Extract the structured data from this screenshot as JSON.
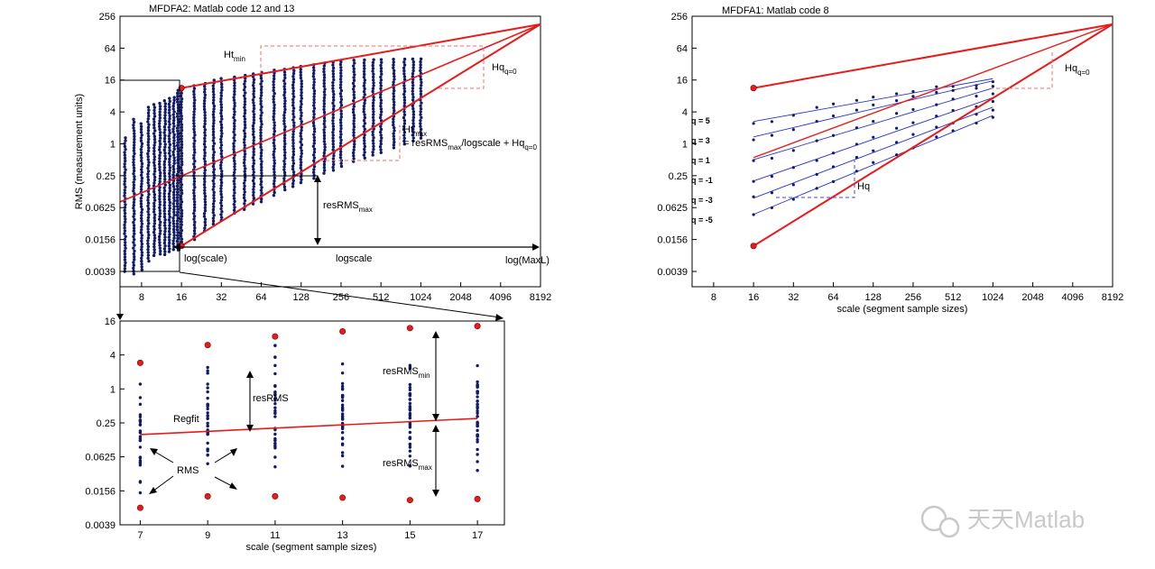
{
  "chart_data": [
    {
      "type": "scatter",
      "title": "MFDFA2: Matlab code 12 and 13",
      "ylabel": "RMS (measurement units)",
      "xlabel": "",
      "xscale": "log2",
      "yscale": "log2",
      "xlim": [
        5.5,
        8192
      ],
      "ylim": [
        0.0039,
        256
      ],
      "x_ticks": [
        "8",
        "16",
        "32",
        "64",
        "128",
        "256",
        "512",
        "1024",
        "2048",
        "4096",
        "8192"
      ],
      "y_ticks": [
        "0.0039",
        "0.0156",
        "0.0625",
        "0.25",
        "1",
        "4",
        "16",
        "64",
        "256"
      ],
      "series": [
        {
          "points": [
            [
              6,
              0.0039,
              1.3
            ],
            [
              7,
              0.0035,
              2.9
            ],
            [
              8,
              0.0042,
              2.4
            ],
            [
              9,
              0.0061,
              4.9
            ],
            [
              10,
              0.0078,
              5.5
            ],
            [
              11,
              0.0083,
              5.8
            ],
            [
              12,
              0.0081,
              6.5
            ],
            [
              13,
              0.0092,
              7.2
            ],
            [
              14,
              0.0101,
              7.5
            ],
            [
              15,
              0.0099,
              10.2
            ],
            [
              16,
              0.0124,
              11.6
            ],
            [
              20,
              0.0156,
              12.5
            ],
            [
              24,
              0.0227,
              13.8
            ],
            [
              28,
              0.0306,
              15.9
            ],
            [
              32,
              0.0359,
              17.1
            ],
            [
              40,
              0.0493,
              18.2
            ],
            [
              48,
              0.0577,
              19.6
            ],
            [
              56,
              0.0733,
              20.9
            ],
            [
              64,
              0.0805,
              22.2
            ],
            [
              80,
              0.1063,
              24.6
            ],
            [
              96,
              0.1351,
              25.5
            ],
            [
              112,
              0.1562,
              27.3
            ],
            [
              128,
              0.1851,
              28.9
            ],
            [
              160,
              0.2234,
              31.1
            ],
            [
              192,
              0.2781,
              33.4
            ],
            [
              224,
              0.3162,
              34.7
            ],
            [
              256,
              0.3752,
              35.6
            ],
            [
              320,
              0.4633,
              37.9
            ],
            [
              384,
              0.5394,
              38.3
            ],
            [
              448,
              0.6128,
              38.7
            ],
            [
              512,
              0.6822,
              38.9
            ],
            [
              640,
              0.8409,
              39.4
            ],
            [
              768,
              0.9892,
              39.6
            ],
            [
              896,
              1.1337,
              39.8
            ],
            [
              1024,
              1.2786,
              40.0
            ]
          ]
        }
      ],
      "lines": [
        {
          "name": "upper",
          "from": [
            16,
            11.3
          ],
          "to": [
            8192,
            181
          ]
        },
        {
          "name": "regfit",
          "from": [
            5.5,
            0.08
          ],
          "to": [
            8192,
            181
          ]
        },
        {
          "name": "lower",
          "from": [
            16,
            0.0118
          ],
          "to": [
            8192,
            181
          ]
        }
      ],
      "endpoints_red": [
        [
          16,
          11.3
        ],
        [
          16,
          0.0118
        ]
      ],
      "annotations": [
        {
          "text": "Ht",
          "sub": "min"
        },
        {
          "text": "Hq",
          "sub": "q=0"
        },
        {
          "text": "Ht",
          "sub": "max"
        },
        {
          "text": "= resRMS",
          "sub": "max",
          "after": "/logscale + Hq",
          "sub2": "q=0"
        },
        {
          "text": "resRMS",
          "sub": "max"
        },
        {
          "text": "log(scale)"
        },
        {
          "text": "logscale"
        },
        {
          "text": "log(MaxL)"
        }
      ]
    },
    {
      "type": "scatter",
      "title": "MFDFA1: Matlab code 8",
      "xlabel": "scale (segment sample sizes)",
      "ylabel": "",
      "xscale": "log2",
      "yscale": "log2",
      "xlim": [
        5.5,
        8192
      ],
      "ylim": [
        0.0039,
        256
      ],
      "x_ticks": [
        "8",
        "16",
        "32",
        "64",
        "128",
        "256",
        "512",
        "1024",
        "2048",
        "4096",
        "8192"
      ],
      "y_ticks": [
        "0.0039",
        "0.0156",
        "0.0625",
        "0.25",
        "1",
        "4",
        "16",
        "64",
        "256"
      ],
      "q_labels": [
        "q = 5",
        "q = 3",
        "q = 1",
        "q = -1",
        "q = -3",
        "q = -5"
      ],
      "series": [
        {
          "name": "q = 5",
          "x": [
            16,
            22,
            32,
            48,
            64,
            96,
            128,
            192,
            256,
            384,
            512,
            768,
            1024
          ],
          "y": [
            2.3,
            2.6,
            3.3,
            4.6,
            5.5,
            6.8,
            7.7,
            9.1,
            10.1,
            11.4,
            12.0,
            13.2,
            14.0
          ]
        },
        {
          "name": "q = 3",
          "x": [
            16,
            22,
            32,
            48,
            64,
            96,
            128,
            192,
            256,
            384,
            512,
            768,
            1024
          ],
          "y": [
            1.2,
            1.4,
            1.9,
            2.7,
            3.3,
            4.4,
            5.2,
            6.6,
            7.6,
            9.2,
            10.1,
            11.6,
            12.6
          ]
        },
        {
          "name": "q = 1",
          "x": [
            16,
            22,
            32,
            48,
            64,
            96,
            128,
            192,
            256,
            384,
            512,
            768,
            1024
          ],
          "y": [
            0.47,
            0.56,
            0.78,
            1.15,
            1.5,
            2.1,
            2.7,
            3.6,
            4.4,
            5.8,
            6.7,
            8.2,
            9.3
          ]
        },
        {
          "name": "q = -1",
          "x": [
            16,
            22,
            32,
            48,
            64,
            96,
            128,
            192,
            256,
            384,
            512,
            768,
            1024
          ],
          "y": [
            0.19,
            0.24,
            0.34,
            0.51,
            0.69,
            1.0,
            1.35,
            1.9,
            2.4,
            3.4,
            4.1,
            5.3,
            6.3
          ]
        },
        {
          "name": "q = -3",
          "x": [
            16,
            22,
            32,
            48,
            64,
            96,
            128,
            192,
            256,
            384,
            512,
            768,
            1024
          ],
          "y": [
            0.095,
            0.12,
            0.17,
            0.26,
            0.36,
            0.54,
            0.73,
            1.08,
            1.42,
            2.1,
            2.6,
            3.5,
            4.3
          ]
        },
        {
          "name": "q = -5",
          "x": [
            16,
            22,
            32,
            48,
            64,
            96,
            128,
            192,
            256,
            384,
            512,
            768,
            1024
          ],
          "y": [
            0.047,
            0.061,
            0.088,
            0.14,
            0.2,
            0.31,
            0.42,
            0.65,
            0.87,
            1.35,
            1.7,
            2.4,
            3.0
          ]
        }
      ],
      "lines": [
        {
          "name": "upper",
          "from": [
            16,
            11.3
          ],
          "to": [
            8192,
            181
          ]
        },
        {
          "name": "lower",
          "from": [
            16,
            0.0118
          ],
          "to": [
            8192,
            181
          ]
        },
        {
          "name": "regfit",
          "from": [
            16,
            0.55
          ],
          "to": [
            8192,
            181
          ]
        }
      ],
      "endpoints_red": [
        [
          16,
          11.3
        ],
        [
          16,
          0.0118
        ]
      ],
      "annotations": [
        {
          "text": "Hq",
          "sub": "q=0"
        },
        {
          "text": "Hq"
        }
      ]
    },
    {
      "type": "scatter",
      "title": "",
      "xlabel": "scale (segment sample sizes)",
      "ylabel": "",
      "xscale": "log2",
      "yscale": "log2",
      "xlim": [
        6.4,
        17.8
      ],
      "ylim": [
        0.0039,
        16
      ],
      "x_ticks": [
        "7",
        "9",
        "11",
        "13",
        "15",
        "17"
      ],
      "y_ticks": [
        "0.0039",
        "0.0156",
        "0.0625",
        "0.25",
        "1",
        "4",
        "16"
      ],
      "columns": [
        {
          "x": 7,
          "min": 0.0078,
          "max": 2.9,
          "n": 30
        },
        {
          "x": 9,
          "min": 0.0125,
          "max": 6.0,
          "n": 36
        },
        {
          "x": 11,
          "min": 0.0125,
          "max": 8.5,
          "n": 38
        },
        {
          "x": 13,
          "min": 0.0118,
          "max": 10.5,
          "n": 40
        },
        {
          "x": 15,
          "min": 0.0107,
          "max": 12.0,
          "n": 42
        },
        {
          "x": 17,
          "min": 0.0112,
          "max": 13.0,
          "n": 44
        }
      ],
      "regfit": {
        "from": [
          7,
          0.155
        ],
        "to": [
          17,
          0.3
        ]
      },
      "annotations": [
        {
          "text": "Regfit"
        },
        {
          "text": "RMS"
        },
        {
          "text": "resRMS"
        },
        {
          "text": "resRMS",
          "sub": "min"
        },
        {
          "text": "resRMS",
          "sub": "max"
        }
      ]
    }
  ],
  "watermark": {
    "text": "天天Matlab"
  },
  "colors": {
    "dots": "#101a6b",
    "red": "#e81b1b",
    "blue": "#2833d0",
    "dash_red": "#f26b6b",
    "dash_blue": "#3f4bdb"
  }
}
